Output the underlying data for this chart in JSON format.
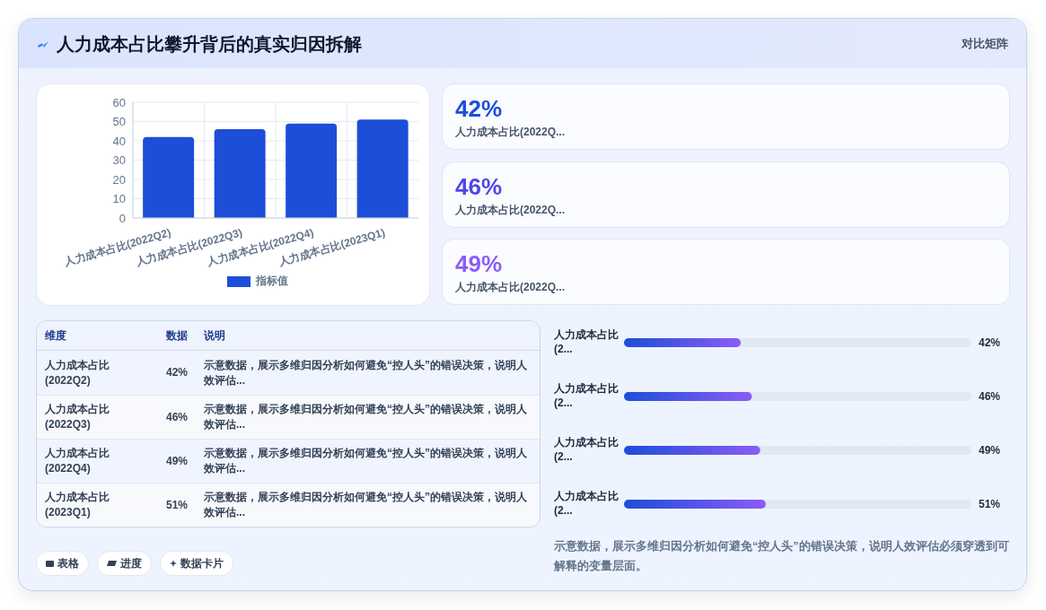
{
  "chart_data": [
    {
      "type": "other",
      "title": "人力成本占比攀升背后的真实归因拆解",
      "subtitle": "对比矩阵"
    },
    {
      "type": "bar",
      "categories": [
        "人力成本占比(2022Q2)",
        "人力成本占比(2022Q3)",
        "人力成本占比(2022Q4)",
        "人力成本占比(2023Q1)"
      ],
      "series": [
        {
          "name": "指标值",
          "color": "#1d4ed8",
          "values": [
            42,
            46,
            49,
            51
          ]
        }
      ],
      "ylim": [
        0,
        60
      ],
      "yticks": [
        0,
        10,
        20,
        30,
        40,
        50,
        60
      ],
      "grid": true,
      "legend": "bottom"
    },
    {
      "type": "other",
      "categories": [
        "人力成本占比(2022Q...",
        "人力成本占比(2022Q...",
        "人力成本占比(2022Q..."
      ],
      "value_labels": [
        "42%",
        "46%",
        "49%"
      ]
    },
    {
      "type": "other",
      "categories": [
        "维度",
        "数据",
        "说明"
      ],
      "cell_labels": [
        [
          "人力成本占比(2022Q2)",
          "42%",
          "示意数据，展示多维归因分析如何避免“控人头”的错误决策，说明人效评估..."
        ],
        [
          "人力成本占比(2022Q3)",
          "46%",
          "示意数据，展示多维归因分析如何避免“控人头”的错误决策，说明人效评估..."
        ],
        [
          "人力成本占比(2022Q4)",
          "49%",
          "示意数据，展示多维归因分析如何避免“控人头”的错误决策，说明人效评估..."
        ],
        [
          "人力成本占比(2023Q1)",
          "51%",
          "示意数据，展示多维归因分析如何避免“控人头”的错误决策，说明人效评估..."
        ]
      ],
      "annotations": [
        "表格",
        "进度",
        "数据卡片"
      ]
    },
    {
      "type": "bar",
      "orientation": "horizontal",
      "categories": [
        "人力成本占比(2...",
        "人力成本占比(2...",
        "人力成本占比(2...",
        "人力成本占比(2..."
      ],
      "values": [
        42,
        46,
        49,
        51
      ],
      "color": "#1d4ed8",
      "value_labels": [
        "42%",
        "46%",
        "49%",
        "51%"
      ],
      "xlim": [
        0,
        125
      ],
      "tick_labels": "y",
      "annotations": [
        "示意数据，展示多维归因分析如何避免“控人头”的错误决策，说明人效评估必须穿透到可解释的变量层面。"
      ]
    }
  ]
}
